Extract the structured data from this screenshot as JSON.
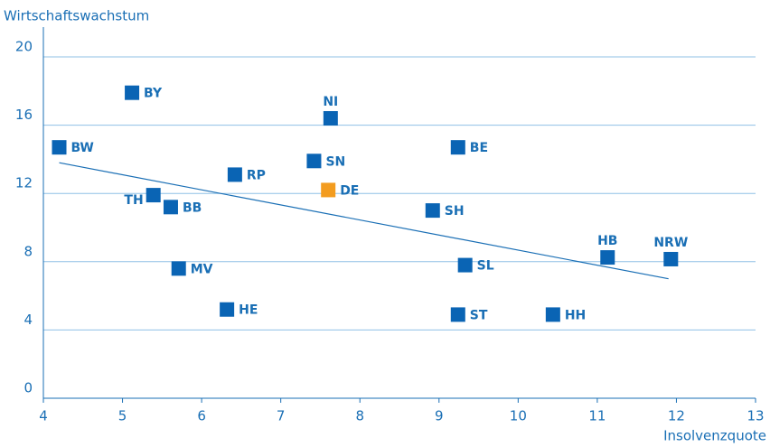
{
  "chart_data": {
    "type": "scatter",
    "y_label": "Wirtschaftswachstum",
    "x_label": "Insolvenzquote",
    "xlim": [
      4,
      13
    ],
    "xticks": [
      4,
      5,
      6,
      7,
      8,
      9,
      10,
      11,
      12,
      13
    ],
    "ylim": [
      0,
      20
    ],
    "yticks": [
      0,
      4,
      8,
      12,
      16,
      20
    ],
    "grid": true,
    "labels": [
      "BW",
      "BY",
      "NI",
      "BE",
      "SN",
      "RP",
      "DE",
      "TH",
      "BB",
      "SH",
      "HB",
      "NRW",
      "SL",
      "MV",
      "HE",
      "ST",
      "HH"
    ],
    "x": [
      4.2,
      5.12,
      7.63,
      9.24,
      7.42,
      6.42,
      7.6,
      5.39,
      5.61,
      8.92,
      11.13,
      11.93,
      9.33,
      5.71,
      6.32,
      9.24,
      10.44
    ],
    "values": [
      14.7,
      17.9,
      16.4,
      14.7,
      13.9,
      13.1,
      12.2,
      11.9,
      11.2,
      11.0,
      8.25,
      8.15,
      7.8,
      7.6,
      5.2,
      4.9,
      4.9
    ],
    "point_colors": [
      "#0a64b4",
      "#0a64b4",
      "#0a64b4",
      "#0a64b4",
      "#0a64b4",
      "#0a64b4",
      "#f39c1f",
      "#0a64b4",
      "#0a64b4",
      "#0a64b4",
      "#0a64b4",
      "#0a64b4",
      "#0a64b4",
      "#0a64b4",
      "#0a64b4",
      "#0a64b4",
      "#0a64b4"
    ],
    "trend_line": {
      "color": "#1a6fb5",
      "x": [
        4.2,
        11.9
      ],
      "values": [
        13.8,
        7.0
      ]
    }
  }
}
